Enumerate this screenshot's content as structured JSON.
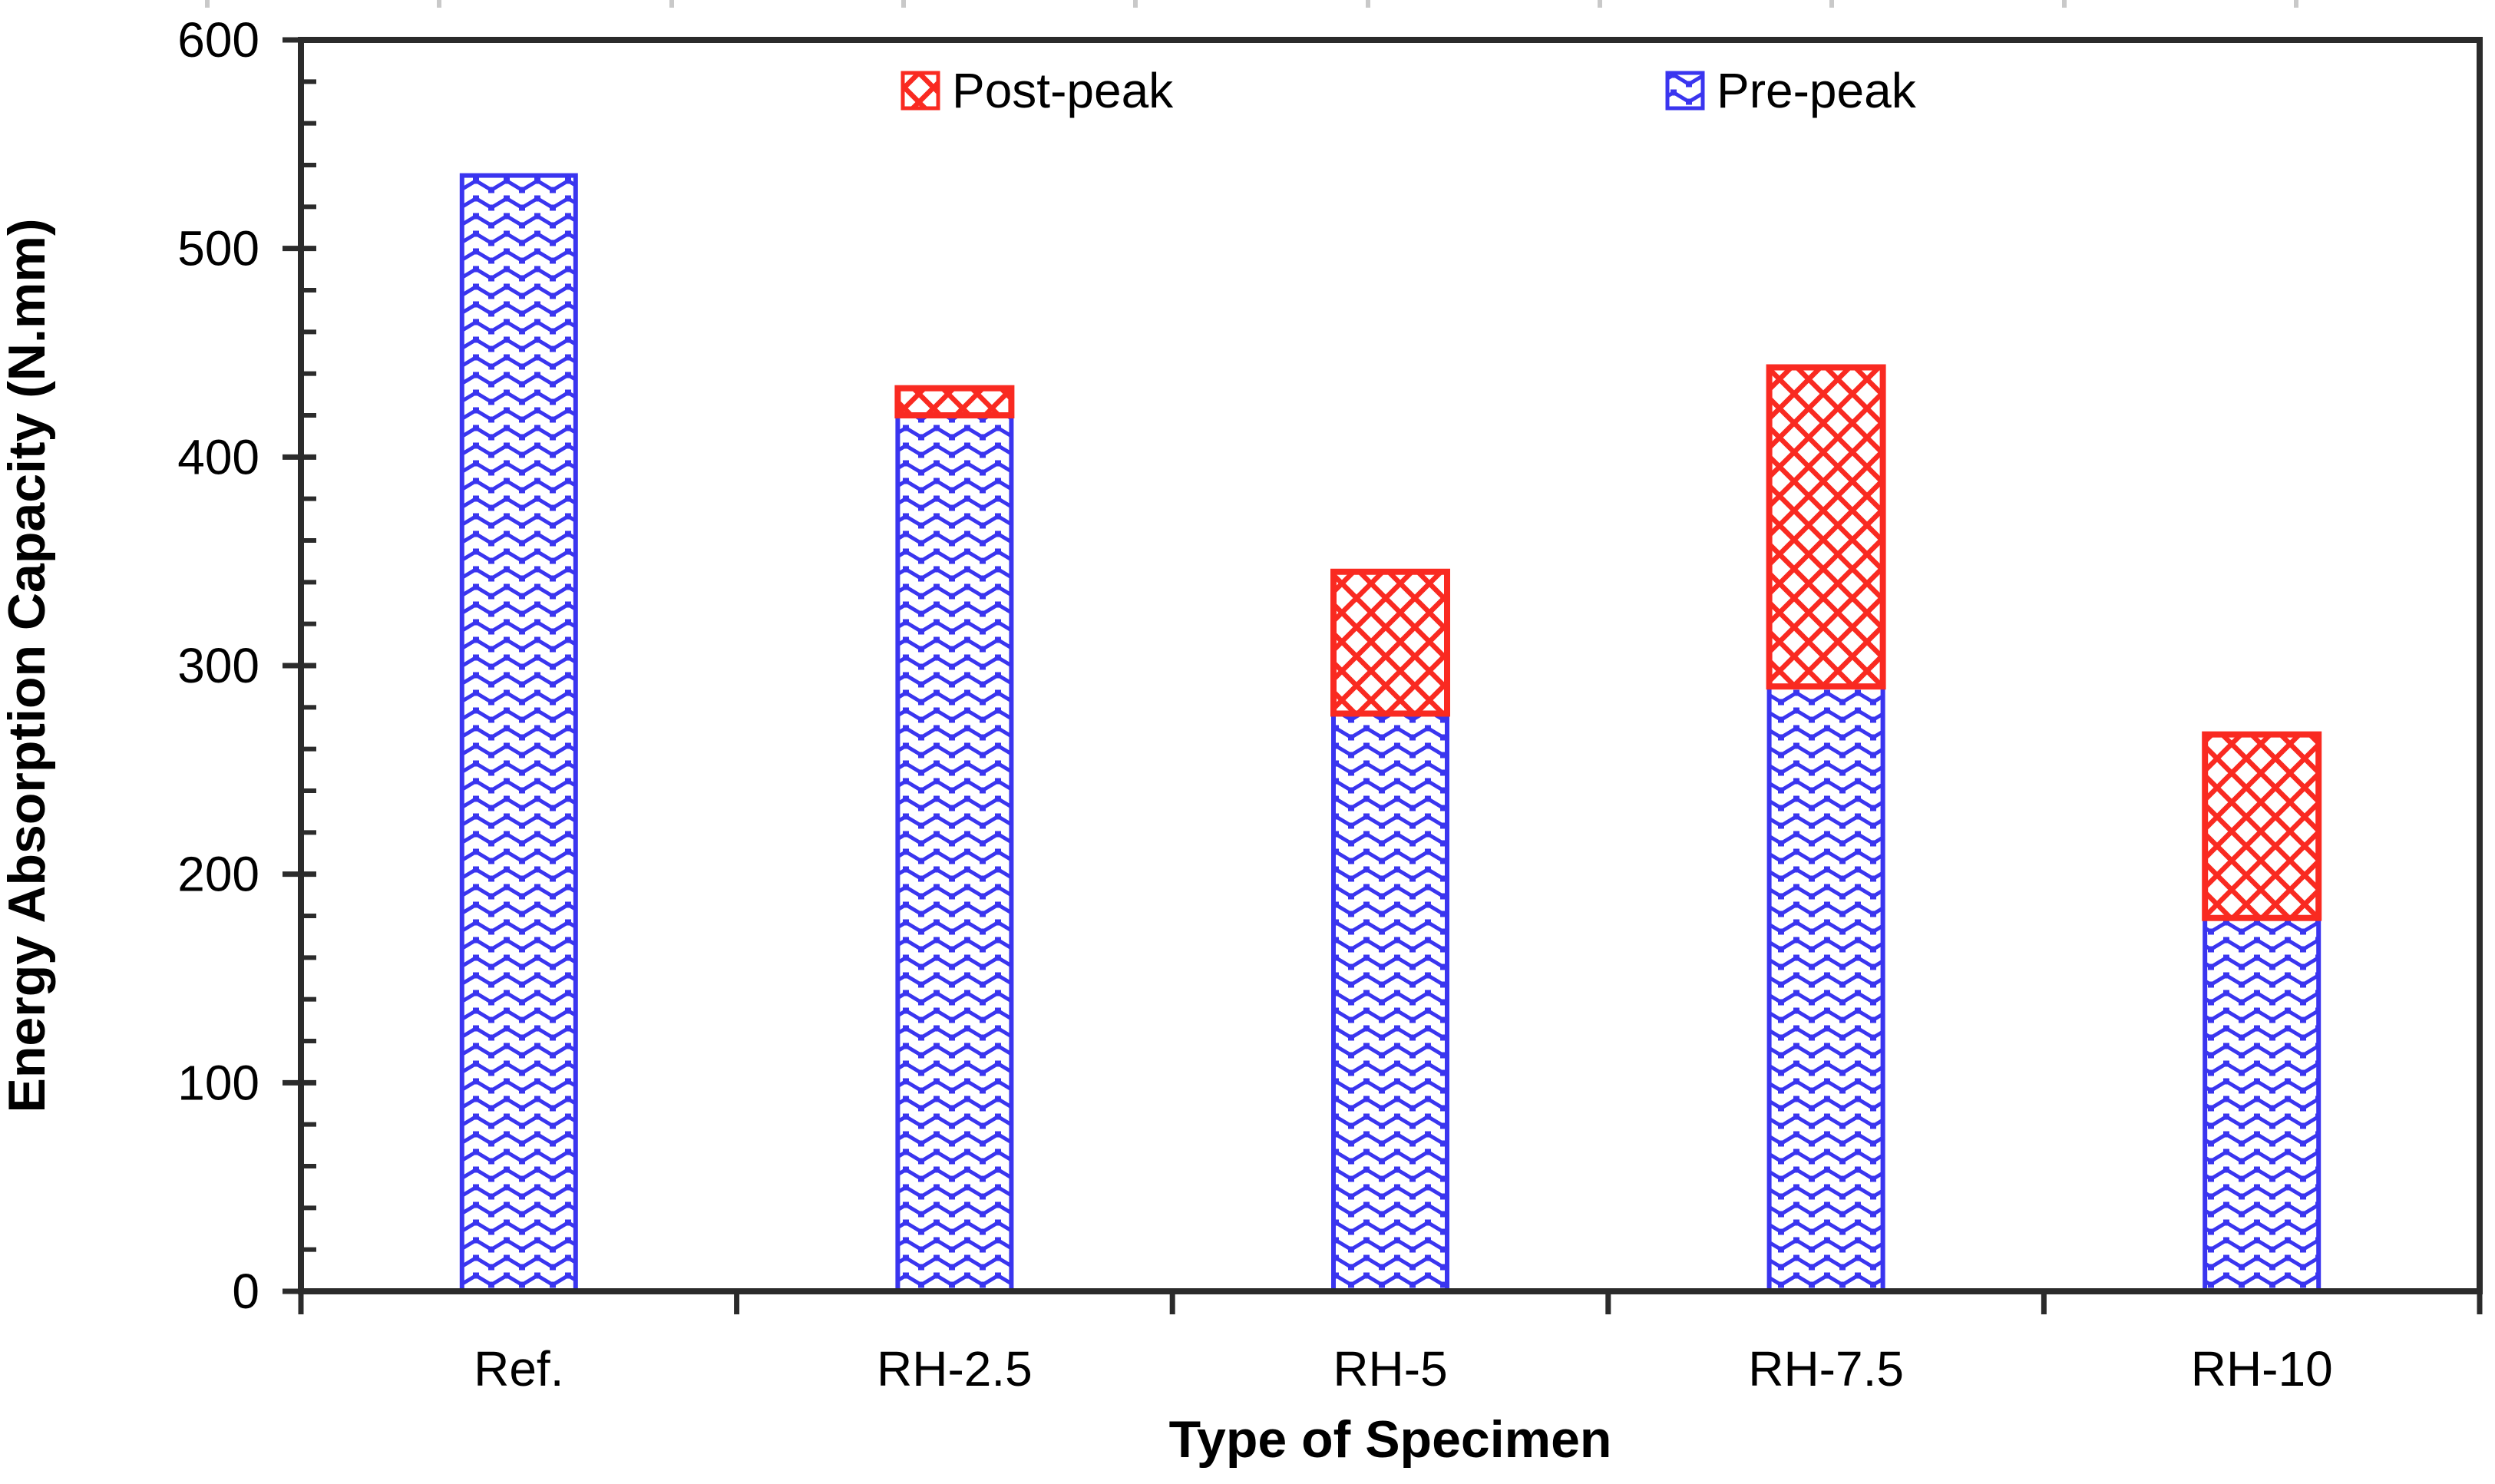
{
  "chart_data": {
    "type": "bar",
    "stacked": true,
    "title": "",
    "xlabel": "Type of Specimen",
    "ylabel": "Energy Absorption Capacity (N.mm)",
    "categories": [
      "Ref.",
      "RH-2.5",
      "RH-5",
      "RH-7.5",
      "RH-10"
    ],
    "series": [
      {
        "name": "Pre-peak",
        "color": "#3a35ef",
        "pattern": "blue-zigzag-wave",
        "values": [
          535,
          420,
          277,
          290,
          179
        ]
      },
      {
        "name": "Post-peak",
        "color": "#f92a21",
        "pattern": "red-diagonal-crosshatch",
        "values": [
          0,
          13,
          68,
          153,
          88
        ]
      }
    ],
    "totals": [
      535,
      433,
      345,
      443,
      267
    ],
    "ylim": [
      0,
      600
    ],
    "y_major_tick_step": 100,
    "y_minor_tick_step": 20,
    "y_tick_labels": [
      "0",
      "100",
      "200",
      "300",
      "400",
      "500",
      "600"
    ],
    "grid": false,
    "legend_position": "top-center-inside"
  },
  "legend": {
    "items": [
      {
        "label": "Post-peak",
        "swatch": "red-crosshatch-square"
      },
      {
        "label": "Pre-peak",
        "swatch": "blue-wave-square"
      }
    ]
  },
  "colors": {
    "pre_peak_blue": "#3a35ef",
    "post_peak_red": "#f92a21",
    "axis_frame": "#2b2b2b",
    "text": "#000000"
  }
}
